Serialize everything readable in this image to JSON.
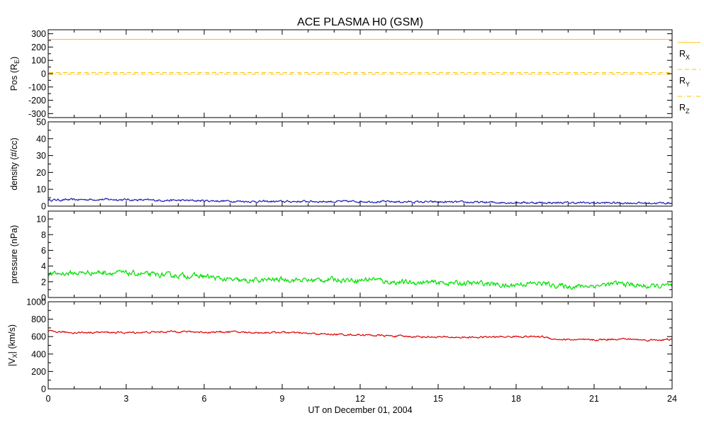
{
  "chart_data": {
    "title": "ACE PLASMA H0 (GSM)",
    "xlabel": "UT on December 01, 2004",
    "x_ticks": [
      "0",
      "3",
      "6",
      "9",
      "12",
      "15",
      "18",
      "21",
      "24"
    ],
    "xlim": [
      0,
      24
    ],
    "panels": [
      {
        "type": "line",
        "ylabel": "Pos (R",
        "ylabel_sub": "E",
        "ylabel_suffix": ")",
        "ylim": [
          -330,
          330
        ],
        "y_ticks": [
          300,
          200,
          100,
          0,
          -100,
          -200,
          -300
        ],
        "y_tick_labels": [
          "300",
          "200",
          "100",
          "0",
          "-100",
          "-200",
          "-300"
        ],
        "series": [
          {
            "name": "R",
            "name_sub": "X",
            "color": "#ffc000",
            "dash": "solid",
            "values_constant": 258
          },
          {
            "name": "R",
            "name_sub": "Y",
            "color": "#ffc000",
            "dash": "dashed",
            "values_constant": 8
          },
          {
            "name": "R",
            "name_sub": "Z",
            "color": "#ffc000",
            "dash": "dashdot",
            "values_constant": -3
          }
        ]
      },
      {
        "type": "line",
        "ylabel": "density (#/cc)",
        "ylim": [
          0,
          50
        ],
        "y_ticks": [
          0,
          10,
          20,
          30,
          40,
          50
        ],
        "y_tick_labels": [
          "0",
          "10",
          "20",
          "30",
          "40",
          "50"
        ],
        "series": [
          {
            "color": "#1a1ab8",
            "x": [
              0,
              1,
              2,
              3,
              4,
              5,
              6,
              7,
              8,
              9,
              10,
              11,
              12,
              13,
              14,
              15,
              16,
              17,
              18,
              19,
              20,
              21,
              22,
              23,
              24
            ],
            "values": [
              3.6,
              3.8,
              4.0,
              3.8,
              3.5,
              3.4,
              3.2,
              3.0,
              2.7,
              2.7,
              2.8,
              2.7,
              2.8,
              2.6,
              2.5,
              2.4,
              2.3,
              2.2,
              2.1,
              2.0,
              2.0,
              1.9,
              1.9,
              1.8,
              1.8
            ]
          }
        ]
      },
      {
        "type": "line",
        "ylabel": "pressure (nPa)",
        "ylim": [
          0,
          11
        ],
        "y_ticks": [
          0,
          2,
          4,
          6,
          8,
          10
        ],
        "y_tick_labels": [
          "0",
          "2",
          "4",
          "6",
          "8",
          "10"
        ],
        "series": [
          {
            "color": "#00e000",
            "x": [
              0,
              1,
              2,
              3,
              4,
              5,
              6,
              6.8,
              7.5,
              9,
              10,
              11,
              12,
              12.5,
              13,
              14,
              15,
              16,
              17,
              17.7,
              18,
              19,
              19.6,
              20,
              21,
              22,
              23,
              24
            ],
            "values": [
              3.0,
              3.1,
              3.2,
              3.1,
              2.9,
              2.8,
              2.7,
              2.3,
              2.1,
              2.3,
              2.2,
              2.3,
              2.2,
              2.4,
              2.0,
              1.9,
              1.9,
              1.8,
              1.8,
              1.4,
              1.7,
              1.8,
              1.5,
              1.4,
              1.5,
              1.8,
              1.4,
              1.5
            ]
          }
        ]
      },
      {
        "type": "line",
        "ylabel": "|V",
        "ylabel_sub": "X",
        "ylabel_suffix": "| (km/s)",
        "ylim": [
          0,
          1000
        ],
        "y_ticks": [
          0,
          200,
          400,
          600,
          800,
          1000
        ],
        "y_tick_labels": [
          "0",
          "200",
          "400",
          "600",
          "800",
          "1000"
        ],
        "series": [
          {
            "color": "#dd0000",
            "x": [
              0,
              1,
              2,
              3,
              4,
              5,
              6,
              7,
              8,
              9,
              10,
              11,
              12,
              13,
              14,
              15,
              16,
              17,
              18,
              19,
              19.5,
              20,
              21,
              22,
              23,
              24
            ],
            "values": [
              660,
              645,
              650,
              645,
              650,
              660,
              650,
              655,
              645,
              650,
              635,
              625,
              620,
              610,
              600,
              595,
              590,
              595,
              600,
              600,
              570,
              565,
              560,
              575,
              560,
              565
            ]
          }
        ]
      }
    ]
  }
}
